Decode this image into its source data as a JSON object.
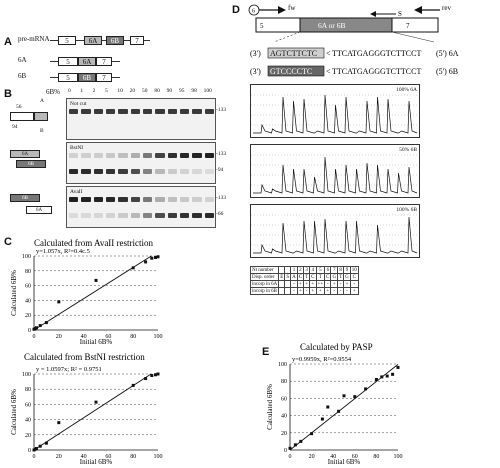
{
  "panels": {
    "A": {
      "letter": "A",
      "rows": [
        {
          "label": "pre-mRNA",
          "exons": [
            "5",
            "6A",
            "6B",
            "7"
          ]
        },
        {
          "label": "6A",
          "exons": [
            "5",
            "6A",
            "7"
          ]
        },
        {
          "label": "6B",
          "exons": [
            "5",
            "6B",
            "7"
          ]
        }
      ]
    },
    "B": {
      "letter": "B",
      "header": "6B%",
      "lanes": [
        "0",
        "1",
        "2",
        "5",
        "10",
        "20",
        "50",
        "80",
        "90",
        "95",
        "98",
        "100"
      ],
      "gels": [
        {
          "label": "Not cut",
          "sizes": [
            "133"
          ]
        },
        {
          "label": "BstNI",
          "sizes": [
            "133",
            "94"
          ]
        },
        {
          "label": "AvaII",
          "sizes": [
            "133",
            "66"
          ]
        }
      ],
      "schematic_labels": {
        "top_left": "56",
        "top_mid": "A",
        "bottom_left": "94",
        "bottom_mid": "B",
        "exon_6a": "6A",
        "exon_6b": "6B"
      }
    },
    "C": {
      "letter": "C"
    },
    "D": {
      "letter": "D",
      "primers": {
        "fw": "fw",
        "fw_num": "6",
        "rev": "rev",
        "s": "S"
      },
      "exons": {
        "left": "5",
        "mid": "6A or 6B",
        "right": "7"
      },
      "seq_6a": {
        "prefix": "(3')",
        "boxed": "AGTCTTCTC",
        "arrow": "<",
        "rest": "TTCATGAGGGTCTTCCT",
        "suffix": "(5') 6A"
      },
      "seq_6b": {
        "prefix": "(3')",
        "boxed": "GTCCCCTC",
        "arrow": "<",
        "rest": "TTCATGAGGGTCTTCCT",
        "suffix": "(5') 6B"
      },
      "traces": [
        {
          "label": "100% 6A"
        },
        {
          "label": "50% 6B"
        },
        {
          "label": "100% 6B"
        }
      ],
      "table": {
        "header": [
          "Nt number",
          "",
          "",
          "1",
          "2",
          "3",
          "4",
          "5",
          "6",
          "7",
          "8",
          "9",
          "10"
        ],
        "rows": [
          [
            "Disp. order",
            "E",
            "S",
            "A",
            "C",
            "T",
            "C",
            "T",
            "C",
            "G",
            "T",
            "G",
            "C"
          ],
          [
            "incorp in 6A",
            "",
            "",
            "-",
            "+",
            "+",
            "+",
            "++",
            "-",
            "+",
            "-",
            "+",
            "-"
          ],
          [
            "incorp in 6B",
            "",
            "",
            "-",
            "+",
            "-",
            "+",
            "+",
            "+",
            "-",
            "-",
            "-",
            "+"
          ]
        ]
      }
    },
    "E": {
      "letter": "E"
    }
  },
  "chart_data": [
    {
      "id": "C-top",
      "type": "scatter",
      "title": "Calculated from AvaII restriction",
      "equation": "y=1.057x, R²=0.4c.5",
      "xlabel": "Initial 6B%",
      "ylabel": "Calculated 6B%",
      "xlim": [
        0,
        100
      ],
      "ylim": [
        0,
        100
      ],
      "xticks": [
        "0",
        "20",
        "40",
        "60",
        "80",
        "100"
      ],
      "yticks": [
        "0",
        "20",
        "40",
        "60",
        "80",
        "100"
      ],
      "x": [
        0,
        1,
        2,
        5,
        10,
        20,
        50,
        80,
        90,
        95,
        98,
        100
      ],
      "y": [
        1,
        2,
        3,
        6,
        10,
        38,
        67,
        84,
        92,
        97,
        98,
        99
      ],
      "fit_slope": 1.057,
      "grid": true
    },
    {
      "id": "C-bottom",
      "type": "scatter",
      "title": "Calculated from BstNI restriction",
      "equation": "y = 1.0597x; R² = 0.9751",
      "xlabel": "Initial 6B%",
      "ylabel": "Calculated 6B%",
      "xlim": [
        0,
        100
      ],
      "ylim": [
        0,
        100
      ],
      "xticks": [
        "0",
        "20",
        "40",
        "60",
        "80",
        "100"
      ],
      "yticks": [
        "0",
        "20",
        "40",
        "60",
        "80",
        "100"
      ],
      "x": [
        0,
        1,
        2,
        5,
        10,
        20,
        50,
        80,
        90,
        95,
        98,
        100
      ],
      "y": [
        0,
        1,
        2,
        5,
        9,
        36,
        63,
        85,
        94,
        98,
        99,
        100
      ],
      "fit_slope": 1.0597,
      "grid": true
    },
    {
      "id": "E",
      "type": "scatter",
      "title": "Calculated by PASP",
      "equation": "y=0.9959x, R²=0.9554",
      "xlabel": "Initial 6B%",
      "ylabel": "Calculated 6B%",
      "xlim": [
        0,
        100
      ],
      "ylim": [
        0,
        100
      ],
      "xticks": [
        "0",
        "20",
        "40",
        "60",
        "80",
        "100"
      ],
      "yticks": [
        "0",
        "20",
        "40",
        "60",
        "80",
        "100"
      ],
      "x": [
        0,
        5,
        10,
        20,
        30,
        35,
        45,
        50,
        60,
        70,
        80,
        85,
        90,
        95,
        100
      ],
      "y": [
        2,
        6,
        10,
        19,
        36,
        50,
        45,
        63,
        62,
        71,
        82,
        85,
        86,
        88,
        96
      ],
      "fit_slope": 0.9959,
      "grid": true
    }
  ]
}
